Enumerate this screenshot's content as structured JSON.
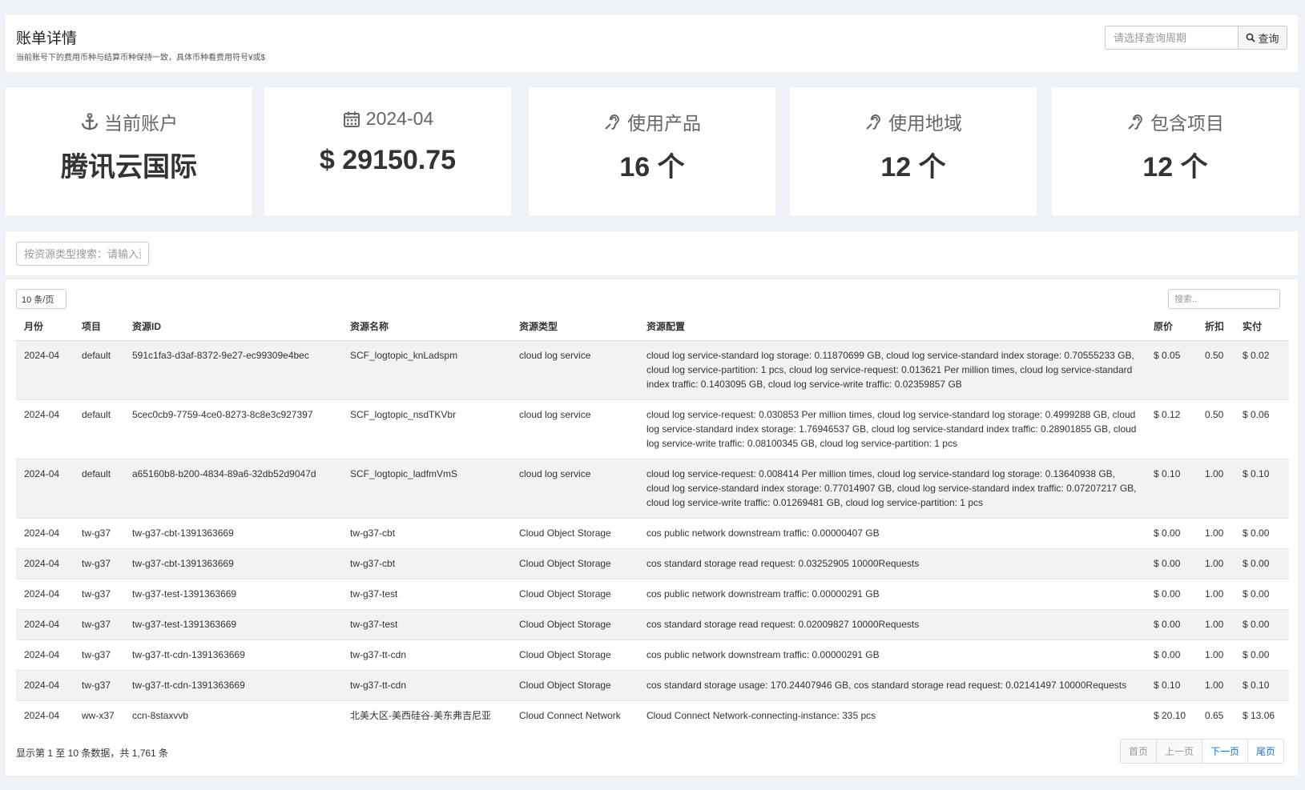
{
  "header": {
    "title": "账单详情",
    "subtitle": "当前账号下的费用币种与结算币种保持一致，具体币种看费用符号¥或$",
    "period_placeholder": "请选择查询周期",
    "query_label": "查询"
  },
  "stats": [
    {
      "icon": "anchor-icon",
      "label": "当前账户",
      "value": "腾讯云国际"
    },
    {
      "icon": "calendar-icon",
      "label": "2024-04",
      "value": "$ 29150.75"
    },
    {
      "icon": "hearing-icon",
      "label": "使用产品",
      "value": "16 个"
    },
    {
      "icon": "hearing-icon",
      "label": "使用地域",
      "value": "12 个"
    },
    {
      "icon": "hearing-icon",
      "label": "包含项目",
      "value": "12 个"
    }
  ],
  "filter": {
    "type_search_placeholder": "按资源类型搜索：请输入资源类型"
  },
  "table": {
    "page_size": "10 条/页",
    "search_placeholder": "搜索..",
    "columns": [
      "月份",
      "项目",
      "资源ID",
      "资源名称",
      "资源类型",
      "资源配置",
      "原价",
      "折扣",
      "实付"
    ],
    "rows": [
      [
        "2024-04",
        "default",
        "591c1fa3-d3af-8372-9e27-ec99309e4bec",
        "SCF_logtopic_knLadspm",
        "cloud log service",
        "cloud log service-standard log storage: 0.11870699 GB, cloud log service-standard index storage: 0.70555233 GB, cloud log service-partition: 1 pcs, cloud log service-request: 0.013621 Per million times, cloud log service-standard index traffic: 0.1403095 GB, cloud log service-write traffic: 0.02359857 GB",
        "$ 0.05",
        "0.50",
        "$ 0.02"
      ],
      [
        "2024-04",
        "default",
        "5cec0cb9-7759-4ce0-8273-8c8e3c927397",
        "SCF_logtopic_nsdTKVbr",
        "cloud log service",
        "cloud log service-request: 0.030853 Per million times, cloud log service-standard log storage: 0.4999288 GB, cloud log service-standard index storage: 1.76946537 GB, cloud log service-standard index traffic: 0.28901855 GB, cloud log service-write traffic: 0.08100345 GB, cloud log service-partition: 1 pcs",
        "$ 0.12",
        "0.50",
        "$ 0.06"
      ],
      [
        "2024-04",
        "default",
        "a65160b8-b200-4834-89a6-32db52d9047d",
        "SCF_logtopic_ladfmVmS",
        "cloud log service",
        "cloud log service-request: 0.008414 Per million times, cloud log service-standard log storage: 0.13640938 GB, cloud log service-standard index storage: 0.77014907 GB, cloud log service-standard index traffic: 0.07207217 GB, cloud log service-write traffic: 0.01269481 GB, cloud log service-partition: 1 pcs",
        "$ 0.10",
        "1.00",
        "$ 0.10"
      ],
      [
        "2024-04",
        "tw-g37",
        "tw-g37-cbt-1391363669",
        "tw-g37-cbt",
        "Cloud Object Storage",
        "cos public network downstream traffic: 0.00000407 GB",
        "$ 0.00",
        "1.00",
        "$ 0.00"
      ],
      [
        "2024-04",
        "tw-g37",
        "tw-g37-cbt-1391363669",
        "tw-g37-cbt",
        "Cloud Object Storage",
        "cos standard storage read request: 0.03252905 10000Requests",
        "$ 0.00",
        "1.00",
        "$ 0.00"
      ],
      [
        "2024-04",
        "tw-g37",
        "tw-g37-test-1391363669",
        "tw-g37-test",
        "Cloud Object Storage",
        "cos public network downstream traffic: 0.00000291 GB",
        "$ 0.00",
        "1.00",
        "$ 0.00"
      ],
      [
        "2024-04",
        "tw-g37",
        "tw-g37-test-1391363669",
        "tw-g37-test",
        "Cloud Object Storage",
        "cos standard storage read request: 0.02009827 10000Requests",
        "$ 0.00",
        "1.00",
        "$ 0.00"
      ],
      [
        "2024-04",
        "tw-g37",
        "tw-g37-tt-cdn-1391363669",
        "tw-g37-tt-cdn",
        "Cloud Object Storage",
        "cos public network downstream traffic: 0.00000291 GB",
        "$ 0.00",
        "1.00",
        "$ 0.00"
      ],
      [
        "2024-04",
        "tw-g37",
        "tw-g37-tt-cdn-1391363669",
        "tw-g37-tt-cdn",
        "Cloud Object Storage",
        "cos standard storage usage: 170.24407946 GB, cos standard storage read request: 0.02141497 10000Requests",
        "$ 0.10",
        "1.00",
        "$ 0.10"
      ],
      [
        "2024-04",
        "ww-x37",
        "ccn-8staxvvb",
        "北美大区-美西硅谷-美东弗吉尼亚",
        "Cloud Connect Network",
        "Cloud Connect Network-connecting-instance: 335 pcs",
        "$ 20.10",
        "0.65",
        "$ 13.06"
      ]
    ],
    "summary": "显示第 1 至 10 条数据，共 1,761 条",
    "pager": [
      "首页",
      "上一页",
      "下一页",
      "尾页"
    ]
  }
}
